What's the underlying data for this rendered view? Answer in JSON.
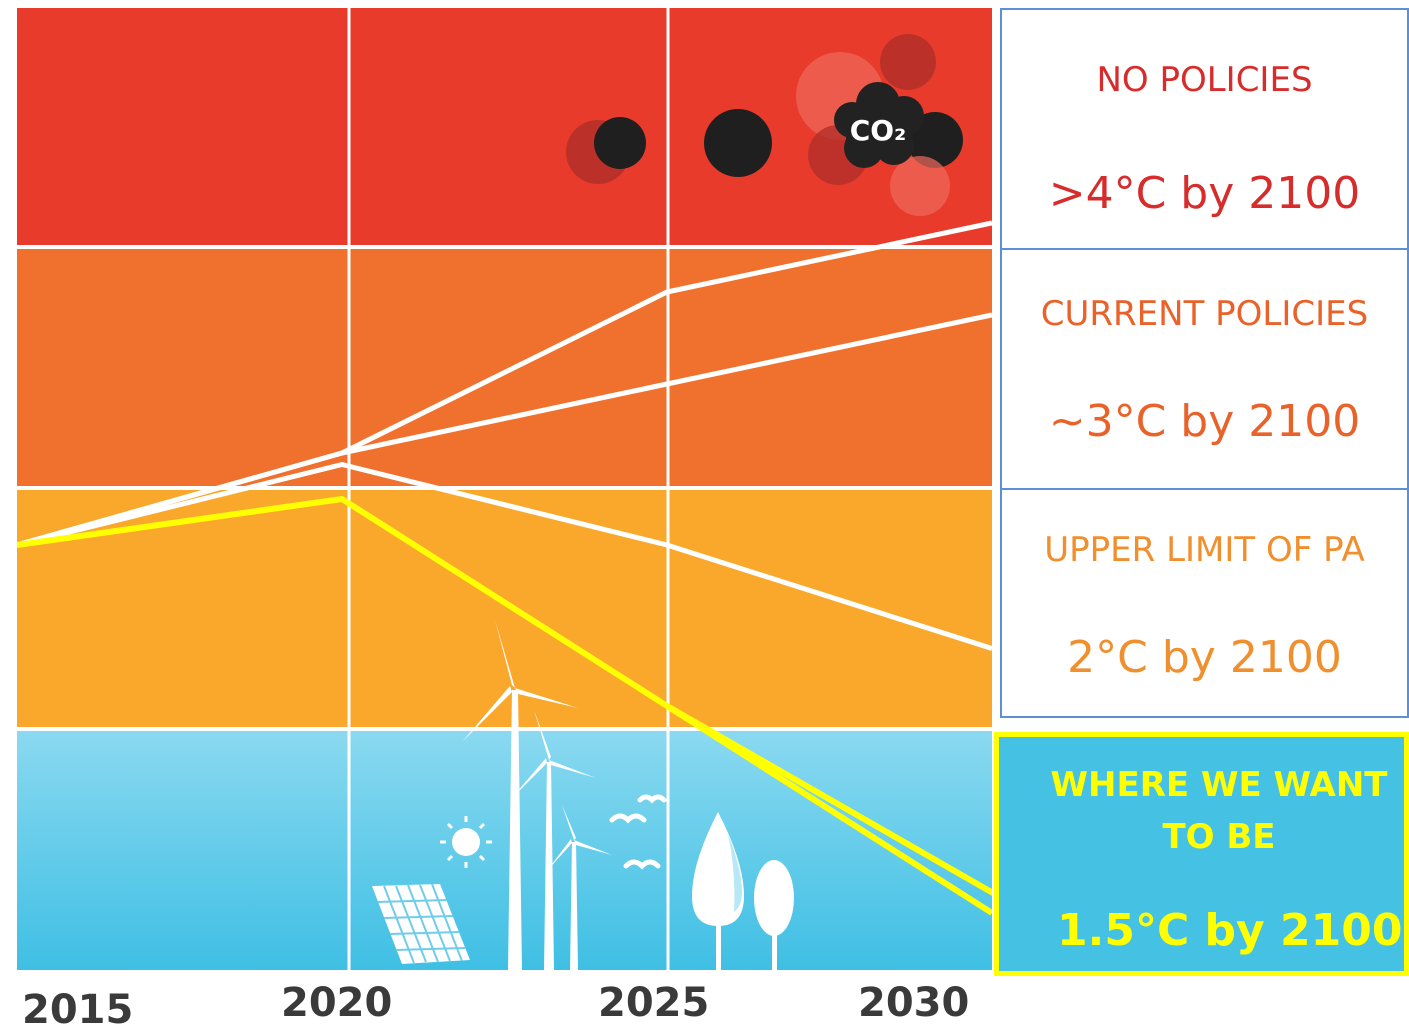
{
  "colors": {
    "red_band": "#e83b2c",
    "orange_band": "#f0712d",
    "amber_band": "#f9a82b",
    "blue_band_top": "#8ad9f0",
    "blue_band_bottom": "#3fbfe4",
    "highlight": "#ffff00",
    "red_text": "#d62c2c",
    "orange_text": "#e8622a",
    "amber_text": "#f08f2e",
    "panel_border": "#5b8fd6",
    "cloud_dark": "#222222"
  },
  "x_axis": {
    "labels": [
      "2015",
      "2020",
      "2025",
      "2030"
    ]
  },
  "co2_label": "CO₂",
  "panels": {
    "no_policies": {
      "title": "NO POLICIES",
      "value": ">4°C by 2100"
    },
    "current_policies": {
      "title": "CURRENT POLICIES",
      "value": "~3°C by 2100"
    },
    "upper_limit": {
      "title": "UPPER LIMIT OF PA",
      "value": "2°C by 2100"
    },
    "target": {
      "title_line1": "WHERE WE WANT",
      "title_line2": "TO BE",
      "value": "1.5°C by 2100"
    }
  },
  "chart_data": {
    "type": "line",
    "x": [
      2015,
      2020,
      2025,
      2030
    ],
    "bands": [
      ">4°C",
      "~3°C",
      "2°C",
      "1.5°C"
    ],
    "series": [
      {
        "values": [
          0.0,
          0.4,
          1.1,
          1.4
        ],
        "color": "#ffffff"
      },
      {
        "values": [
          0.0,
          0.4,
          0.7,
          1.0
        ],
        "color": "#ffffff"
      },
      {
        "values": [
          0.0,
          0.35,
          0.0,
          -0.45
        ],
        "color": "#ffffff"
      },
      {
        "values": [
          0.0,
          0.2,
          -0.7,
          -1.6
        ],
        "color": "#ffff00"
      }
    ]
  }
}
